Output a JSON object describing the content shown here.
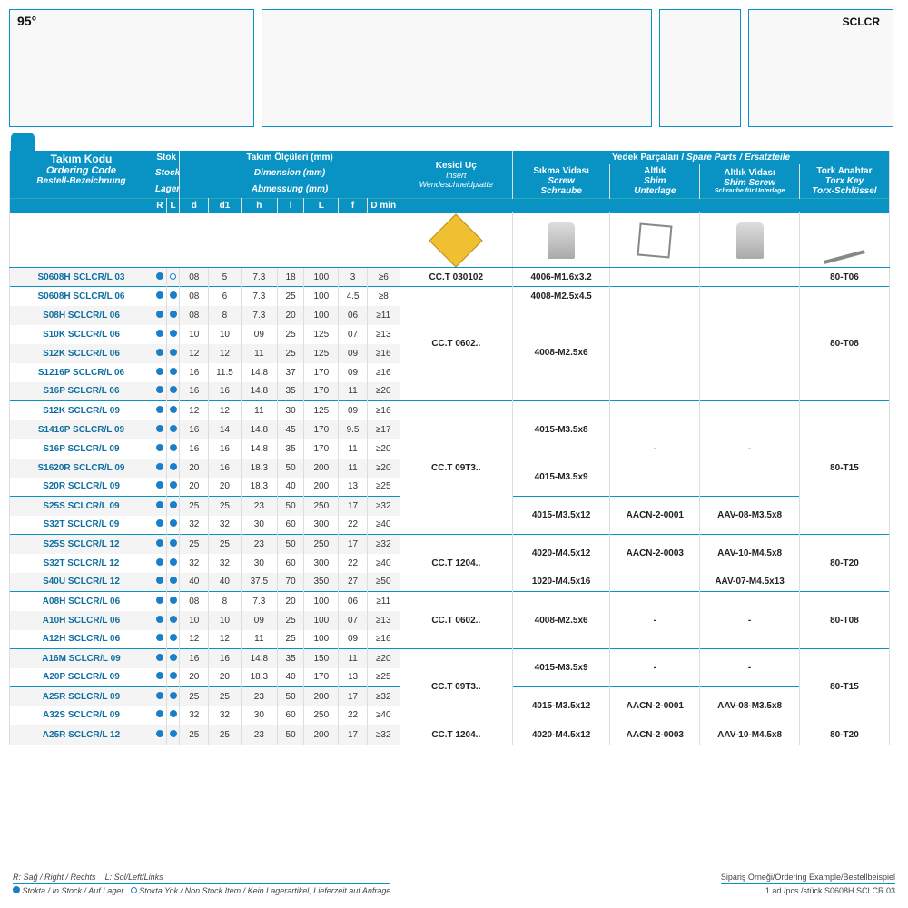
{
  "angle": "95°",
  "sclcr": "SCLCR",
  "headers": {
    "takim": {
      "l1": "Takım Kodu",
      "l2": "Ordering Code",
      "l3": "Bestell-Bezeichnung"
    },
    "stok": {
      "l1": "Stok",
      "l2": "Stock",
      "l3": "Lager"
    },
    "dim": {
      "l1": "Takım Ölçüleri (mm)",
      "l2": "Dimension (mm)",
      "l3": "Abmessung (mm)"
    },
    "insert": {
      "l1": "Kesici Uç",
      "l2": "Insert",
      "l3": "Wendeschneidplatte"
    },
    "spare": {
      "l1": "Yedek Parçaları /",
      "l2": "Spare Parts",
      "l3": "/ Ersatzteile"
    },
    "screw": {
      "l1": "Sıkma Vidası",
      "l2": "Screw",
      "l3": "Schraube"
    },
    "shim": {
      "l1": "Altlık",
      "l2": "Shim",
      "l3": "Unterlage"
    },
    "shimscrew": {
      "l1": "Altlık Vidası",
      "l2": "Shim Screw",
      "l3": "Schraube für Unterlage"
    },
    "torx": {
      "l1": "Tork Anahtar",
      "l2": "Torx Key",
      "l3": "Torx-Schlüssel"
    },
    "sub": [
      "R",
      "L",
      "d",
      "d1",
      "h",
      "l",
      "L",
      "f",
      "D min"
    ]
  },
  "stock_legend": {
    "r": "R: Sağ / Right / Rechts",
    "l": "L: Sol/Left/Links",
    "in": "Stokta / In Stock / Auf Lager",
    "out": "Stokta Yok / Non Stock Item / Kein Lagerartikel, Lieferzeit auf Anfrage"
  },
  "order_example": {
    "l1": "Sipariş Örneği/Ordering Example/Bestellbeispiel",
    "l2": "1 ad./pcs./stück S0608H SCLCR 03"
  },
  "rows": [
    {
      "code": "S0608H SCLCR/L 03",
      "r": "f",
      "l": "h",
      "d": "08",
      "d1": "5",
      "h": "7.3",
      "ll": "18",
      "L": "100",
      "f": "3",
      "dmin": "≥6"
    },
    {
      "code": "S0608H SCLCR/L 06",
      "r": "f",
      "l": "f",
      "d": "08",
      "d1": "6",
      "h": "7.3",
      "ll": "25",
      "L": "100",
      "f": "4.5",
      "dmin": "≥8"
    },
    {
      "code": "S08H SCLCR/L 06",
      "r": "f",
      "l": "f",
      "d": "08",
      "d1": "8",
      "h": "7.3",
      "ll": "20",
      "L": "100",
      "f": "06",
      "dmin": "≥11"
    },
    {
      "code": "S10K SCLCR/L 06",
      "r": "f",
      "l": "f",
      "d": "10",
      "d1": "10",
      "h": "09",
      "ll": "25",
      "L": "125",
      "f": "07",
      "dmin": "≥13"
    },
    {
      "code": "S12K SCLCR/L 06",
      "r": "f",
      "l": "f",
      "d": "12",
      "d1": "12",
      "h": "11",
      "ll": "25",
      "L": "125",
      "f": "09",
      "dmin": "≥16"
    },
    {
      "code": "S1216P SCLCR/L 06",
      "r": "f",
      "l": "f",
      "d": "16",
      "d1": "11.5",
      "h": "14.8",
      "ll": "37",
      "L": "170",
      "f": "09",
      "dmin": "≥16"
    },
    {
      "code": "S16P SCLCR/L 06",
      "r": "f",
      "l": "f",
      "d": "16",
      "d1": "16",
      "h": "14.8",
      "ll": "35",
      "L": "170",
      "f": "11",
      "dmin": "≥20"
    },
    {
      "code": "S12K SCLCR/L 09",
      "r": "f",
      "l": "f",
      "d": "12",
      "d1": "12",
      "h": "11",
      "ll": "30",
      "L": "125",
      "f": "09",
      "dmin": "≥16"
    },
    {
      "code": "S1416P SCLCR/L 09",
      "r": "f",
      "l": "f",
      "d": "16",
      "d1": "14",
      "h": "14.8",
      "ll": "45",
      "L": "170",
      "f": "9.5",
      "dmin": "≥17"
    },
    {
      "code": "S16P SCLCR/L 09",
      "r": "f",
      "l": "f",
      "d": "16",
      "d1": "16",
      "h": "14.8",
      "ll": "35",
      "L": "170",
      "f": "11",
      "dmin": "≥20"
    },
    {
      "code": "S1620R SCLCR/L 09",
      "r": "f",
      "l": "f",
      "d": "20",
      "d1": "16",
      "h": "18.3",
      "ll": "50",
      "L": "200",
      "f": "11",
      "dmin": "≥20"
    },
    {
      "code": "S20R SCLCR/L 09",
      "r": "f",
      "l": "f",
      "d": "20",
      "d1": "20",
      "h": "18.3",
      "ll": "40",
      "L": "200",
      "f": "13",
      "dmin": "≥25"
    },
    {
      "code": "S25S SCLCR/L 09",
      "r": "f",
      "l": "f",
      "d": "25",
      "d1": "25",
      "h": "23",
      "ll": "50",
      "L": "250",
      "f": "17",
      "dmin": "≥32"
    },
    {
      "code": "S32T SCLCR/L 09",
      "r": "f",
      "l": "f",
      "d": "32",
      "d1": "32",
      "h": "30",
      "ll": "60",
      "L": "300",
      "f": "22",
      "dmin": "≥40"
    },
    {
      "code": "S25S SCLCR/L 12",
      "r": "f",
      "l": "f",
      "d": "25",
      "d1": "25",
      "h": "23",
      "ll": "50",
      "L": "250",
      "f": "17",
      "dmin": "≥32"
    },
    {
      "code": "S32T SCLCR/L 12",
      "r": "f",
      "l": "f",
      "d": "32",
      "d1": "32",
      "h": "30",
      "ll": "60",
      "L": "300",
      "f": "22",
      "dmin": "≥40"
    },
    {
      "code": "S40U SCLCR/L 12",
      "r": "f",
      "l": "f",
      "d": "40",
      "d1": "40",
      "h": "37.5",
      "ll": "70",
      "L": "350",
      "f": "27",
      "dmin": "≥50"
    },
    {
      "code": "A08H SCLCR/L 06",
      "r": "f",
      "l": "f",
      "d": "08",
      "d1": "8",
      "h": "7.3",
      "ll": "20",
      "L": "100",
      "f": "06",
      "dmin": "≥11"
    },
    {
      "code": "A10H SCLCR/L 06",
      "r": "f",
      "l": "f",
      "d": "10",
      "d1": "10",
      "h": "09",
      "ll": "25",
      "L": "100",
      "f": "07",
      "dmin": "≥13"
    },
    {
      "code": "A12H SCLCR/L 06",
      "r": "f",
      "l": "f",
      "d": "12",
      "d1": "12",
      "h": "11",
      "ll": "25",
      "L": "100",
      "f": "09",
      "dmin": "≥16"
    },
    {
      "code": "A16M SCLCR/L 09",
      "r": "f",
      "l": "f",
      "d": "16",
      "d1": "16",
      "h": "14.8",
      "ll": "35",
      "L": "150",
      "f": "11",
      "dmin": "≥20"
    },
    {
      "code": "A20P SCLCR/L 09",
      "r": "f",
      "l": "f",
      "d": "20",
      "d1": "20",
      "h": "18.3",
      "ll": "40",
      "L": "170",
      "f": "13",
      "dmin": "≥25"
    },
    {
      "code": "A25R SCLCR/L 09",
      "r": "f",
      "l": "f",
      "d": "25",
      "d1": "25",
      "h": "23",
      "ll": "50",
      "L": "200",
      "f": "17",
      "dmin": "≥32"
    },
    {
      "code": "A32S SCLCR/L 09",
      "r": "f",
      "l": "f",
      "d": "32",
      "d1": "32",
      "h": "30",
      "ll": "60",
      "L": "250",
      "f": "22",
      "dmin": "≥40"
    },
    {
      "code": "A25R SCLCR/L 12",
      "r": "f",
      "l": "f",
      "d": "25",
      "d1": "25",
      "h": "23",
      "ll": "50",
      "L": "200",
      "f": "17",
      "dmin": "≥32"
    }
  ],
  "merges": {
    "insert": [
      {
        "row": 0,
        "span": 1,
        "val": "CC.T 030102"
      },
      {
        "row": 1,
        "span": 6,
        "val": "CC.T 0602.."
      },
      {
        "row": 7,
        "span": 7,
        "val": "CC.T 09T3.."
      },
      {
        "row": 14,
        "span": 3,
        "val": "CC.T 1204.."
      },
      {
        "row": 17,
        "span": 3,
        "val": "CC.T 0602.."
      },
      {
        "row": 20,
        "span": 4,
        "val": "CC.T 09T3.."
      },
      {
        "row": 24,
        "span": 1,
        "val": "CC.T 1204.."
      }
    ],
    "screw": [
      {
        "row": 0,
        "span": 1,
        "val": "4006-M1.6x3.2"
      },
      {
        "row": 1,
        "span": 1,
        "val": "4008-M2.5x4.5"
      },
      {
        "row": 2,
        "span": 5,
        "val": "4008-M2.5x6"
      },
      {
        "row": 7,
        "span": 3,
        "val": "4015-M3.5x8"
      },
      {
        "row": 10,
        "span": 2,
        "val": "4015-M3.5x9"
      },
      {
        "row": 12,
        "span": 2,
        "val": "4015-M3.5x12"
      },
      {
        "row": 14,
        "span": 2,
        "val": "4020-M4.5x12"
      },
      {
        "row": 16,
        "span": 1,
        "val": "1020-M4.5x16"
      },
      {
        "row": 17,
        "span": 3,
        "val": "4008-M2.5x6"
      },
      {
        "row": 20,
        "span": 2,
        "val": "4015-M3.5x9"
      },
      {
        "row": 22,
        "span": 2,
        "val": "4015-M3.5x12"
      },
      {
        "row": 24,
        "span": 1,
        "val": "4020-M4.5x12"
      }
    ],
    "shim": [
      {
        "row": 0,
        "span": 1,
        "val": ""
      },
      {
        "row": 1,
        "span": 6,
        "val": ""
      },
      {
        "row": 7,
        "span": 5,
        "val": "-"
      },
      {
        "row": 12,
        "span": 2,
        "val": "AACN-2-0001"
      },
      {
        "row": 14,
        "span": 2,
        "val": "AACN-2-0003"
      },
      {
        "row": 16,
        "span": 1,
        "val": ""
      },
      {
        "row": 17,
        "span": 3,
        "val": "-"
      },
      {
        "row": 20,
        "span": 2,
        "val": "-"
      },
      {
        "row": 22,
        "span": 2,
        "val": "AACN-2-0001"
      },
      {
        "row": 24,
        "span": 1,
        "val": "AACN-2-0003"
      }
    ],
    "shimscrew": [
      {
        "row": 0,
        "span": 1,
        "val": ""
      },
      {
        "row": 1,
        "span": 6,
        "val": ""
      },
      {
        "row": 7,
        "span": 5,
        "val": "-"
      },
      {
        "row": 12,
        "span": 2,
        "val": "AAV-08-M3.5x8"
      },
      {
        "row": 14,
        "span": 2,
        "val": "AAV-10-M4.5x8"
      },
      {
        "row": 16,
        "span": 1,
        "val": "AAV-07-M4.5x13"
      },
      {
        "row": 17,
        "span": 3,
        "val": "-"
      },
      {
        "row": 20,
        "span": 2,
        "val": "-"
      },
      {
        "row": 22,
        "span": 2,
        "val": "AAV-08-M3.5x8"
      },
      {
        "row": 24,
        "span": 1,
        "val": "AAV-10-M4.5x8"
      }
    ],
    "torx": [
      {
        "row": 0,
        "span": 1,
        "val": "80-T06"
      },
      {
        "row": 1,
        "span": 6,
        "val": "80-T08"
      },
      {
        "row": 7,
        "span": 7,
        "val": "80-T15"
      },
      {
        "row": 14,
        "span": 3,
        "val": "80-T20"
      },
      {
        "row": 17,
        "span": 3,
        "val": "80-T08"
      },
      {
        "row": 20,
        "span": 4,
        "val": "80-T15"
      },
      {
        "row": 24,
        "span": 1,
        "val": "80-T20"
      }
    ]
  },
  "group_breaks": [
    1,
    7,
    12,
    14,
    17,
    20,
    22,
    24
  ],
  "colors": {
    "brand": "#0893c4",
    "row_alt": "#f4f4f4",
    "code": "#0e6fa0"
  }
}
